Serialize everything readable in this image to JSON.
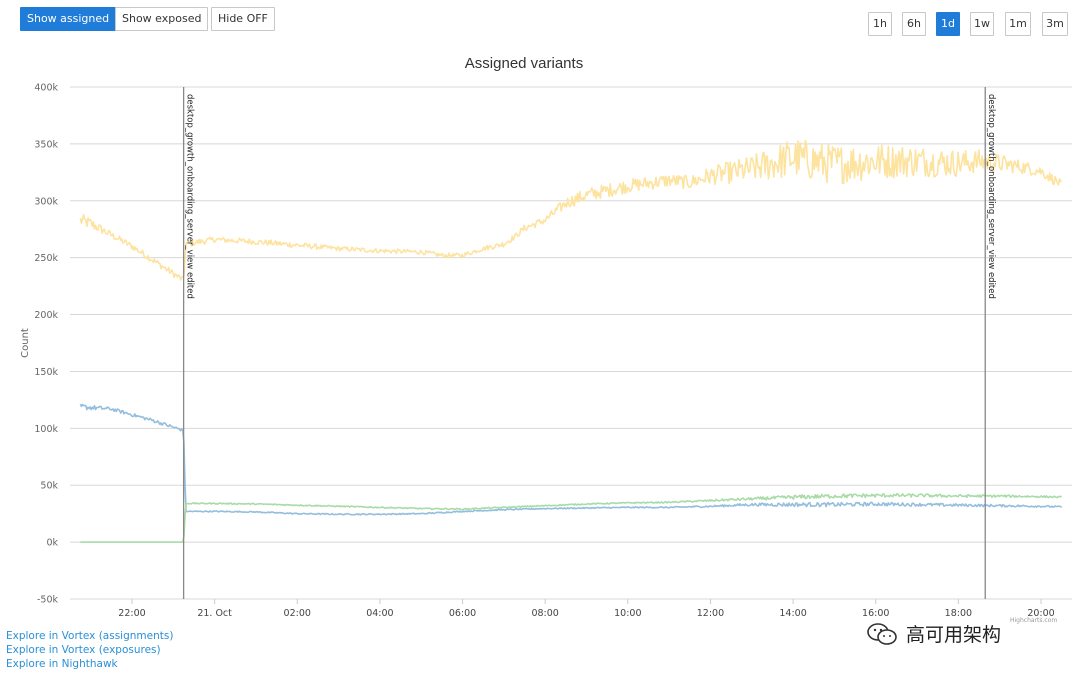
{
  "toolbar": {
    "show_assigned": "Show assigned",
    "show_exposed": "Show exposed",
    "hide_off": "Hide OFF"
  },
  "ranges": [
    "1h",
    "6h",
    "1d",
    "1w",
    "1m",
    "3m"
  ],
  "active_range": "1d",
  "links": [
    "Explore in Vortex (assignments)",
    "Explore in Vortex (exposures)",
    "Explore in Nighthawk"
  ],
  "watermark": "高可用架构",
  "credit": "Highcharts.com",
  "colors": {
    "accent": "#1f7cd9",
    "yellow": "#fde3a0",
    "blue": "#94bedd",
    "green": "#a8dba8",
    "grid": "#d8d8d8",
    "annotation": "#888888"
  },
  "chart_data": {
    "type": "line",
    "title": "Assigned variants",
    "ylabel": "Count",
    "xlabel": "",
    "ylim": [
      -50000,
      400000
    ],
    "xlim": [
      20.5,
      44.75
    ],
    "yticks": [
      -50000,
      0,
      50000,
      100000,
      150000,
      200000,
      250000,
      300000,
      350000,
      400000
    ],
    "ytick_labels": [
      "-50k",
      "0k",
      "50k",
      "100k",
      "150k",
      "200k",
      "250k",
      "300k",
      "350k",
      "400k"
    ],
    "xticks": [
      22,
      24,
      26,
      28,
      30,
      32,
      34,
      36,
      38,
      40,
      42,
      44
    ],
    "xtick_labels": [
      "22:00",
      "21. Oct",
      "02:00",
      "04:00",
      "06:00",
      "08:00",
      "10:00",
      "12:00",
      "14:00",
      "16:00",
      "18:00",
      "20:00"
    ],
    "grid": true,
    "annotations": [
      {
        "x": 23.25,
        "label": "desktop_growth_onboarding_server_view edited"
      },
      {
        "x": 42.65,
        "label": "desktop_growth_onboarding_server_view edited"
      }
    ],
    "series": [
      {
        "name": "variant-yellow",
        "color": "#fde3a0",
        "x": [
          20.75,
          21.0,
          21.5,
          22.0,
          22.5,
          23.0,
          23.25,
          23.3,
          24.0,
          25.0,
          26.0,
          27.0,
          28.0,
          29.0,
          29.5,
          30.0,
          30.25,
          30.5,
          31.0,
          31.25,
          31.5,
          32.0,
          32.5,
          33.0,
          34.0,
          35.0,
          35.5,
          36.0,
          37.0,
          38.0,
          39.0,
          40.0,
          41.0,
          42.0,
          42.5,
          43.0,
          43.5,
          44.0,
          44.5
        ],
        "values": [
          283000,
          280000,
          270000,
          260000,
          248000,
          236000,
          230000,
          262000,
          266000,
          264000,
          261000,
          258000,
          256000,
          255000,
          252000,
          252000,
          255000,
          258000,
          262000,
          268000,
          276000,
          283000,
          298000,
          305000,
          313000,
          318000,
          316000,
          322000,
          328000,
          338000,
          332000,
          335000,
          335000,
          333000,
          335000,
          333000,
          330000,
          326000,
          314000
        ],
        "noise": [
          6000,
          5000,
          3000,
          3000,
          3000,
          3000,
          3000,
          3000,
          2500,
          2500,
          2500,
          2000,
          2000,
          2000,
          2000,
          2000,
          2000,
          2000,
          2500,
          2500,
          3000,
          3500,
          5000,
          6000,
          6000,
          6000,
          6000,
          8000,
          12000,
          18000,
          18000,
          16000,
          14000,
          12000,
          10000,
          8000,
          6000,
          5000,
          4000
        ]
      },
      {
        "name": "variant-blue",
        "color": "#94bedd",
        "x": [
          20.75,
          21.5,
          22.0,
          22.5,
          23.0,
          23.25,
          23.3,
          24.0,
          25.0,
          26.0,
          27.0,
          28.0,
          29.0,
          30.0,
          31.0,
          32.0,
          33.0,
          34.0,
          35.0,
          36.0,
          37.0,
          38.0,
          39.0,
          40.0,
          41.0,
          42.0,
          43.0,
          44.0,
          44.5
        ],
        "values": [
          119000,
          117000,
          112000,
          107000,
          101000,
          98000,
          27000,
          27000,
          26500,
          25000,
          24500,
          24500,
          25000,
          27000,
          28500,
          29500,
          30000,
          30500,
          30500,
          31500,
          33000,
          33000,
          33000,
          33500,
          33000,
          32500,
          32000,
          31500,
          31000
        ],
        "noise": [
          2500,
          1500,
          1500,
          1500,
          1500,
          1000,
          500,
          500,
          500,
          500,
          500,
          500,
          500,
          500,
          500,
          500,
          500,
          500,
          500,
          800,
          1200,
          1800,
          1800,
          1600,
          1400,
          1200,
          1000,
          800,
          600
        ]
      },
      {
        "name": "variant-green",
        "color": "#a8dba8",
        "x": [
          20.75,
          21.5,
          22.0,
          22.5,
          23.0,
          23.25,
          23.3,
          24.0,
          25.0,
          26.0,
          27.0,
          28.0,
          29.0,
          30.0,
          31.0,
          32.0,
          33.0,
          34.0,
          35.0,
          36.0,
          37.0,
          38.0,
          39.0,
          40.0,
          41.0,
          42.0,
          43.0,
          44.0,
          44.5
        ],
        "values": [
          0,
          0,
          0,
          0,
          0,
          0,
          34000,
          34000,
          33500,
          32500,
          31500,
          30500,
          29500,
          29000,
          30500,
          32000,
          33500,
          34500,
          35000,
          36500,
          38000,
          39500,
          40500,
          41000,
          41000,
          40500,
          40500,
          40000,
          39500
        ],
        "noise": [
          0,
          0,
          0,
          0,
          0,
          0,
          500,
          500,
          500,
          500,
          500,
          500,
          500,
          500,
          500,
          500,
          500,
          500,
          500,
          800,
          1200,
          1800,
          1800,
          1600,
          1400,
          1200,
          1000,
          800,
          600
        ]
      }
    ]
  }
}
